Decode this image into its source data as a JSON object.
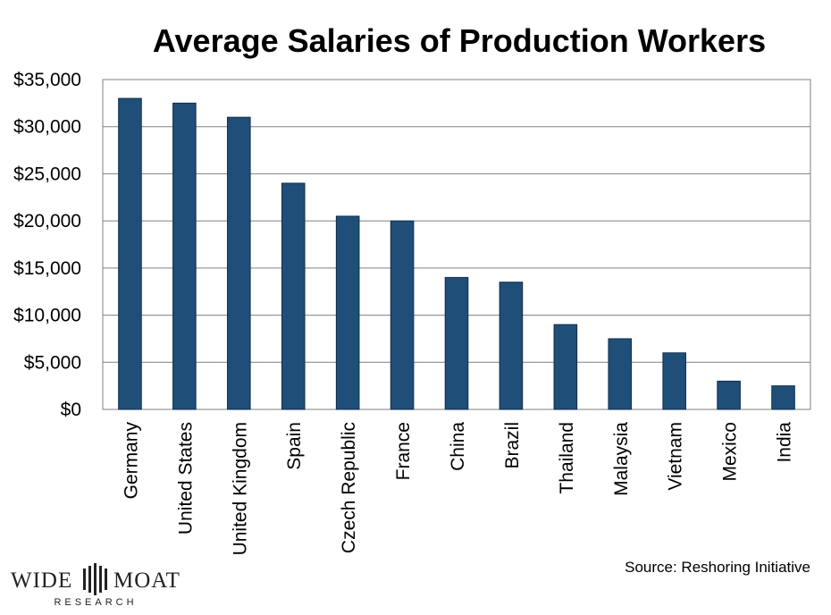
{
  "chart_data": {
    "type": "bar",
    "title": "Average Salaries of Production Workers",
    "categories": [
      "Germany",
      "United States",
      "United Kingdom",
      "Spain",
      "Czech Republic",
      "France",
      "China",
      "Brazil",
      "Thailand",
      "Malaysia",
      "Vietnam",
      "Mexico",
      "India"
    ],
    "values": [
      33000,
      32500,
      31000,
      24000,
      20500,
      20000,
      14000,
      13500,
      9000,
      7500,
      6000,
      3000,
      2500
    ],
    "ylim": [
      0,
      35000
    ],
    "yticks": [
      0,
      5000,
      10000,
      15000,
      20000,
      25000,
      30000,
      35000
    ],
    "ytick_labels": [
      "$0",
      "$5,000",
      "$10,000",
      "$15,000",
      "$20,000",
      "$25,000",
      "$30,000",
      "$35,000"
    ],
    "xlabel": "",
    "ylabel": "",
    "grid": true,
    "bar_color": "#1f4e79"
  },
  "source": "Source: Reshoring Initiative",
  "logo": {
    "left_word": "WIDE",
    "right_word": "MOAT",
    "subtitle": "RESEARCH"
  }
}
